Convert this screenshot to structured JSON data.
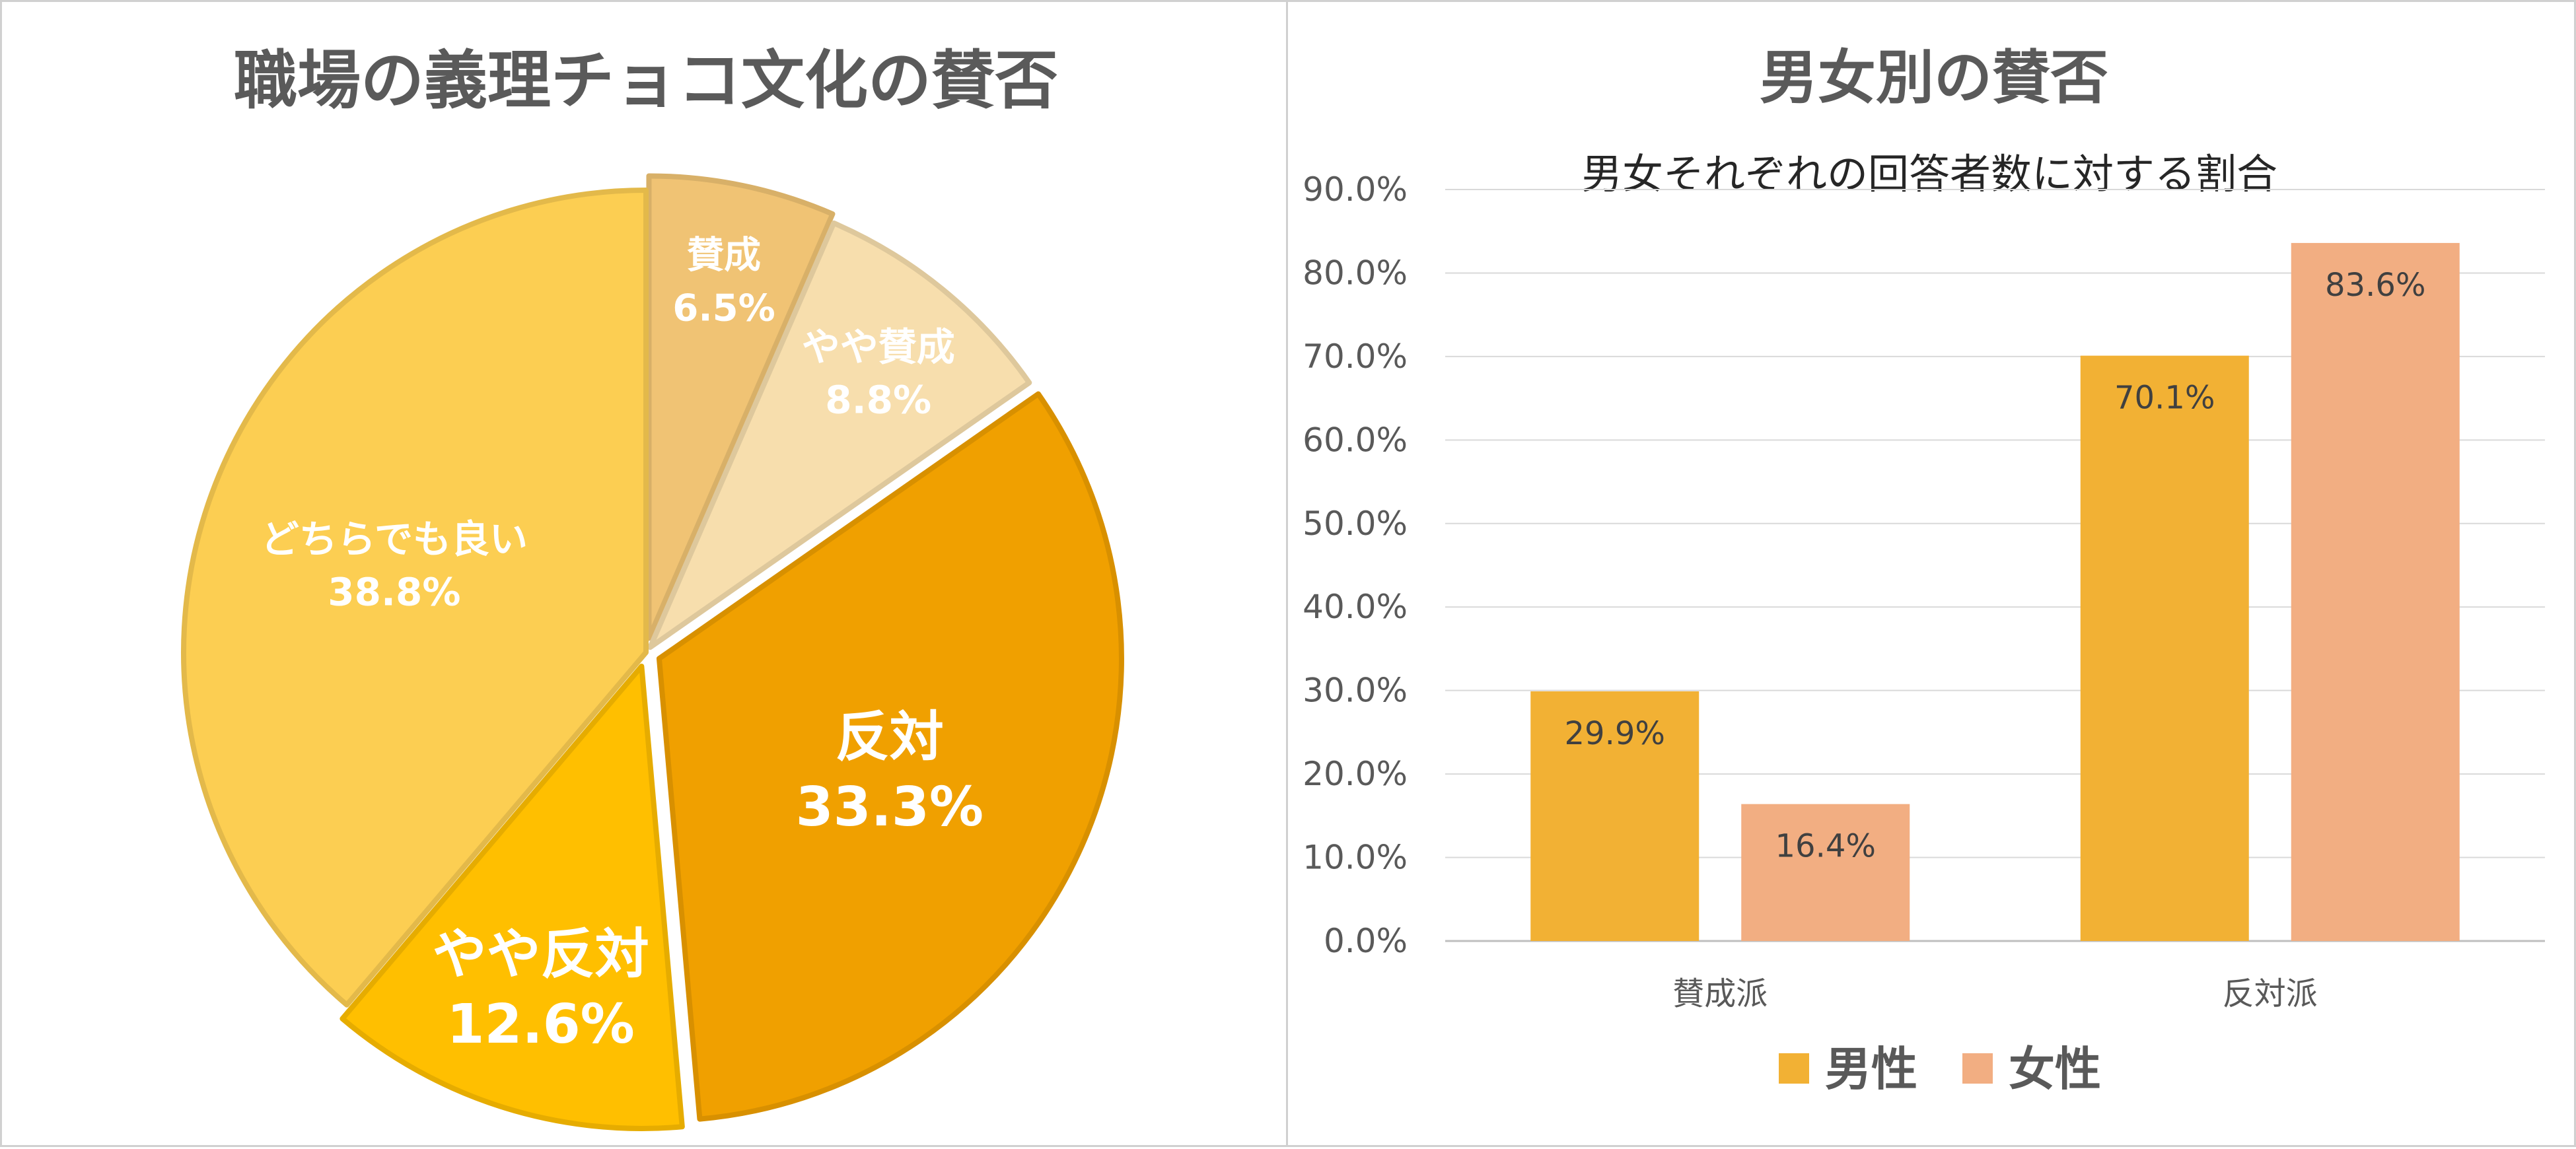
{
  "chart_data": [
    {
      "type": "pie",
      "title": "職場の義理チョコ文化の賛否",
      "slices": [
        {
          "label": "賛成",
          "value": 6.5,
          "value_label": "6.5%",
          "color": "#F0C374"
        },
        {
          "label": "やや賛成",
          "value": 8.8,
          "value_label": "8.8%",
          "color": "#F7DEAD"
        },
        {
          "label": "反対",
          "value": 33.3,
          "value_label": "33.3%",
          "color": "#F0A000"
        },
        {
          "label": "やや反対",
          "value": 12.6,
          "value_label": "12.6%",
          "color": "#FFBF00"
        },
        {
          "label": "どちらでも良い",
          "value": 38.8,
          "value_label": "38.8%",
          "color": "#FCCE52"
        }
      ]
    },
    {
      "type": "bar",
      "title": "男女別の賛否",
      "subtitle": "男女それぞれの回答者数に対する割合",
      "categories": [
        "賛成派",
        "反対派"
      ],
      "series": [
        {
          "name": "男性",
          "values": [
            29.9,
            70.1
          ],
          "value_labels": [
            "29.9%",
            "70.1%"
          ],
          "color": "#F2B134"
        },
        {
          "name": "女性",
          "values": [
            16.4,
            83.6
          ],
          "value_labels": [
            "16.4%",
            "83.6%"
          ],
          "color": "#F2AE82"
        }
      ],
      "ylim": [
        0,
        90
      ],
      "yticks": [
        "0.0%",
        "10.0%",
        "20.0%",
        "30.0%",
        "40.0%",
        "50.0%",
        "60.0%",
        "70.0%",
        "80.0%",
        "90.0%"
      ],
      "grid": true,
      "legend_position": "bottom"
    }
  ]
}
